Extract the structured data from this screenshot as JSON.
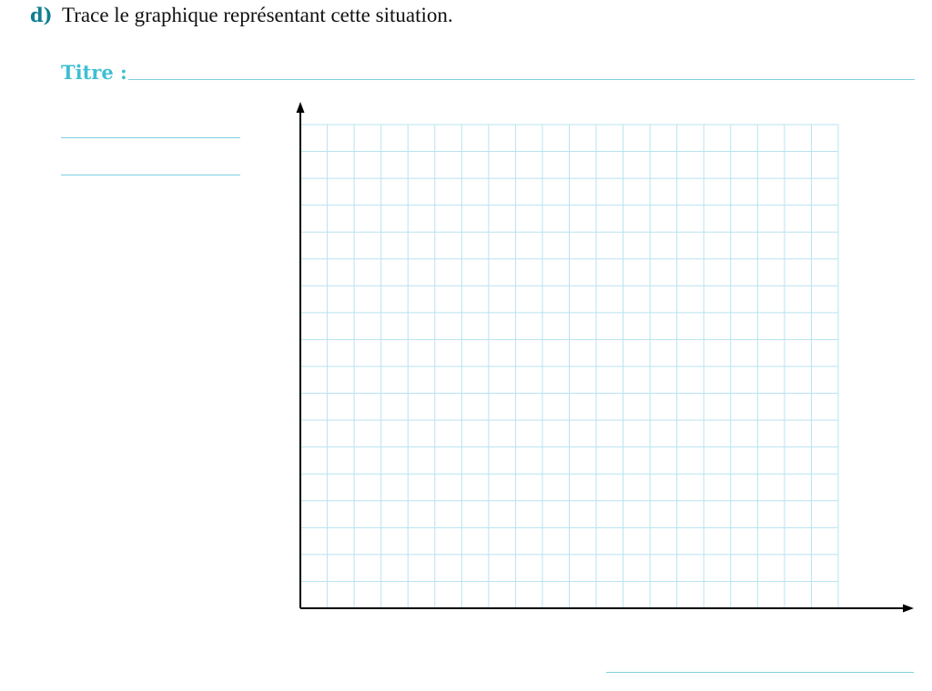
{
  "question": {
    "letter": "d)",
    "text": "Trace le graphique représentant cette situation."
  },
  "title": {
    "label": "Titre :",
    "value": ""
  },
  "y_axis_title": {
    "line1": "",
    "line2": ""
  },
  "x_axis_title": "",
  "colors": {
    "accent_dark": "#0f7f91",
    "accent_light": "#3fbfd1",
    "grid": "#b8e3f0",
    "axis": "#000000"
  },
  "grid": {
    "columns": 20,
    "rows": 18
  }
}
